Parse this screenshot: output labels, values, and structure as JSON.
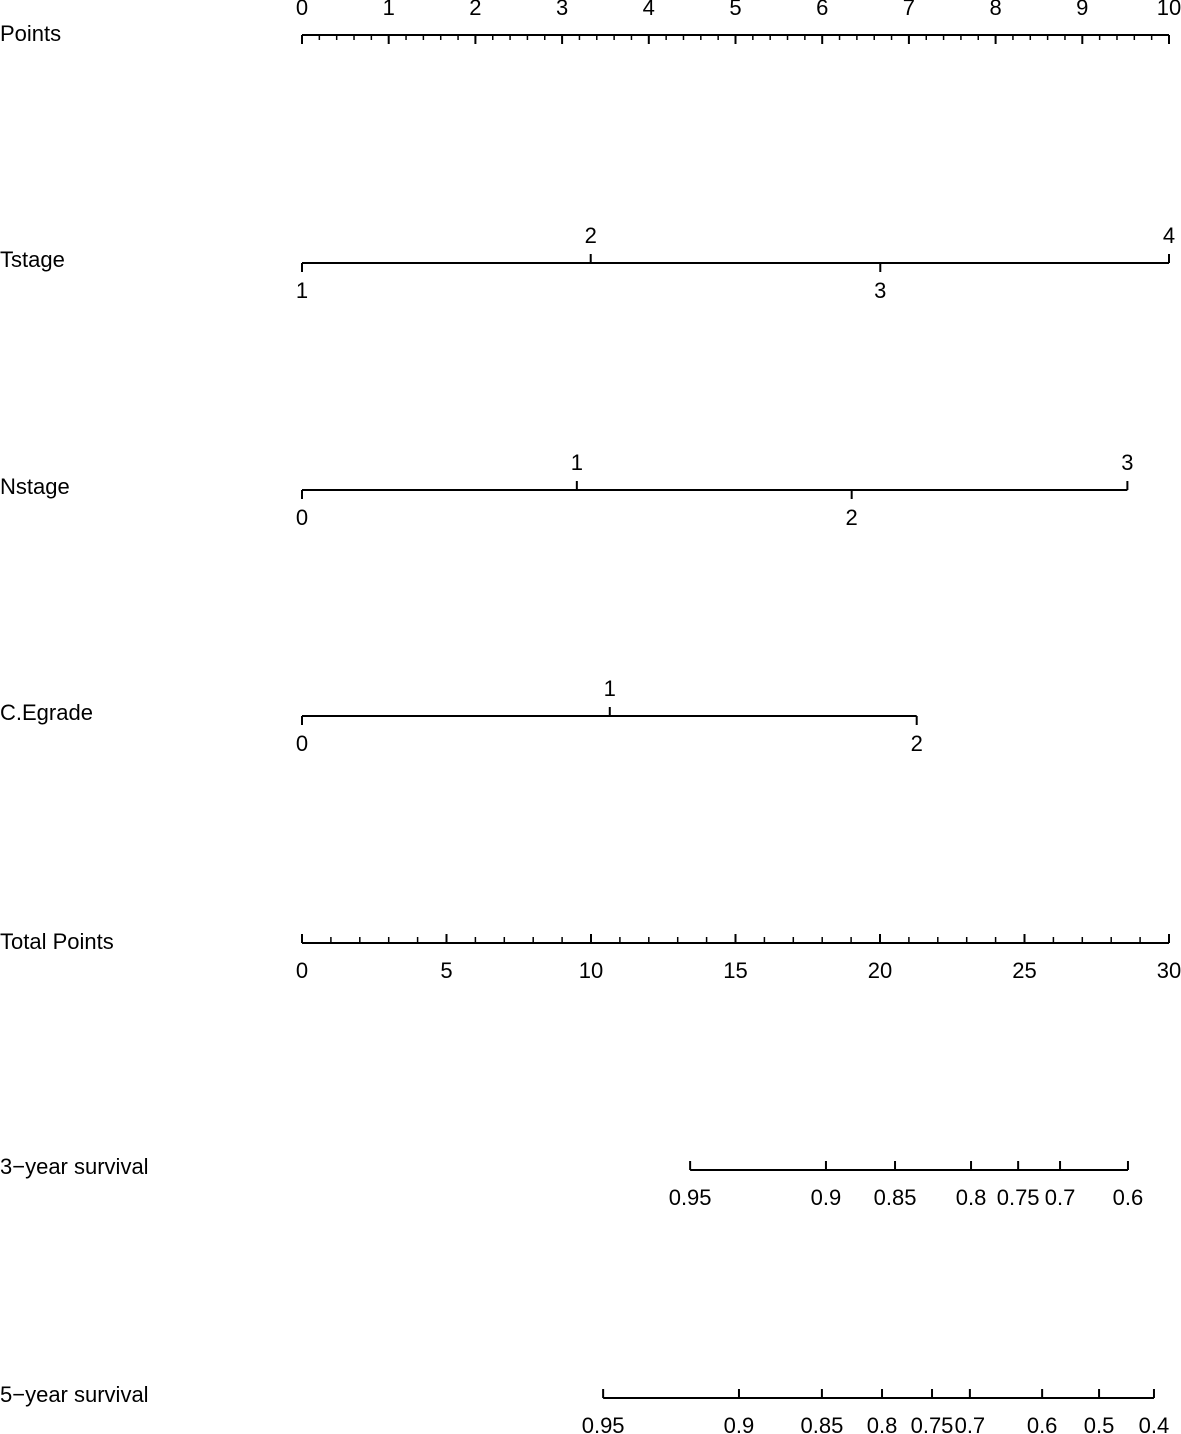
{
  "chart_data": {
    "type": "nomogram",
    "points_axis": {
      "name": "Points",
      "lim": [
        0,
        10
      ],
      "ticks": [
        0,
        1,
        2,
        3,
        4,
        5,
        6,
        7,
        8,
        9,
        10
      ],
      "minor_tick_step": 0.2
    },
    "variables": [
      {
        "name": "Tstage",
        "categories": [
          "1",
          "2",
          "3",
          "4"
        ],
        "values": [
          0,
          3.33,
          6.67,
          10
        ]
      },
      {
        "name": "Nstage",
        "categories": [
          "0",
          "1",
          "2",
          "3"
        ],
        "values": [
          0,
          3.17,
          6.34,
          9.52
        ]
      },
      {
        "name": "C.Egrade",
        "categories": [
          "0",
          "1",
          "2"
        ],
        "values": [
          0,
          3.55,
          7.09
        ]
      }
    ],
    "total_axis": {
      "name": "Total Points",
      "lim": [
        0,
        30
      ],
      "ticks": [
        0,
        5,
        10,
        15,
        20,
        25,
        30
      ],
      "minor_tick_step": 1
    },
    "outcomes": [
      {
        "name": "3−year survival",
        "values": [
          0.95,
          0.9,
          0.85,
          0.8,
          0.75,
          0.7,
          0.6
        ],
        "x": [
          13.43,
          18.13,
          20.52,
          23.15,
          24.78,
          26.23,
          28.58
        ]
      },
      {
        "name": "5−year survival",
        "values": [
          0.95,
          0.9,
          0.85,
          0.8,
          0.75,
          0.7,
          0.6,
          0.5,
          0.4
        ],
        "x": [
          10.42,
          15.12,
          17.99,
          20.07,
          21.8,
          23.11,
          25.61,
          27.58,
          29.48
        ]
      }
    ],
    "color": "#000000"
  }
}
